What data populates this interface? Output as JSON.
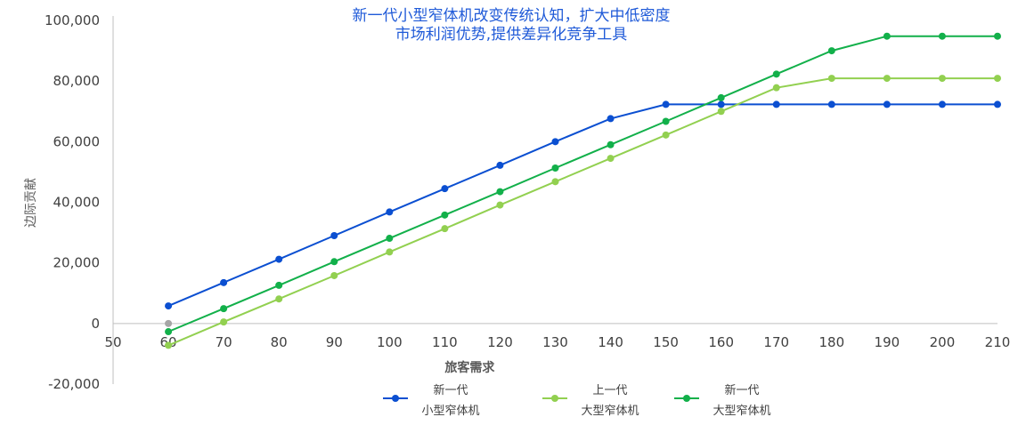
{
  "chart_data": {
    "type": "line",
    "title": [
      "新一代小型窄体机改变传统认知，扩大中低密度",
      "市场利润优势,提供差异化竞争工具"
    ],
    "xlabel": "旅客需求",
    "ylabel": "边际贡献",
    "xlim": [
      50,
      210
    ],
    "ylim": [
      -20000,
      100000
    ],
    "x_ticks": [
      50,
      60,
      70,
      80,
      90,
      100,
      110,
      120,
      130,
      140,
      150,
      160,
      170,
      180,
      190,
      200,
      210
    ],
    "y_ticks": [
      "-20,000",
      "0",
      "20,000",
      "40,000",
      "60,000",
      "80,000",
      "100,000"
    ],
    "y_tick_values": [
      -20000,
      0,
      20000,
      40000,
      60000,
      80000,
      100000
    ],
    "grid": false,
    "legend_position": "bottom",
    "x": [
      60,
      70,
      80,
      90,
      100,
      110,
      120,
      130,
      140,
      150,
      160,
      170,
      180,
      190,
      200,
      210
    ],
    "series": [
      {
        "name": [
          "新一代",
          "小型窄体机"
        ],
        "color": "#0b4fd1",
        "values": [
          5800,
          13500,
          21200,
          29000,
          36800,
          44500,
          52200,
          60000,
          67600,
          72300,
          72300,
          72300,
          72300,
          72300,
          72300,
          72300
        ]
      },
      {
        "name": [
          "上一代",
          "大型窄体机"
        ],
        "color": "#92d050",
        "values": [
          -7200,
          500,
          8100,
          15800,
          23600,
          31300,
          39100,
          46800,
          54500,
          62200,
          70000,
          77800,
          80900,
          80900,
          80900,
          80900
        ]
      },
      {
        "name": [
          "新一代",
          "大型窄体机"
        ],
        "color": "#12b04a",
        "values": [
          -2700,
          4900,
          12600,
          20400,
          28100,
          35800,
          43500,
          51300,
          59000,
          66700,
          74500,
          82300,
          90000,
          94800,
          94800,
          94800
        ]
      }
    ],
    "extra_point": {
      "x": 60,
      "y": 0,
      "color": "#a6a6a6"
    }
  }
}
